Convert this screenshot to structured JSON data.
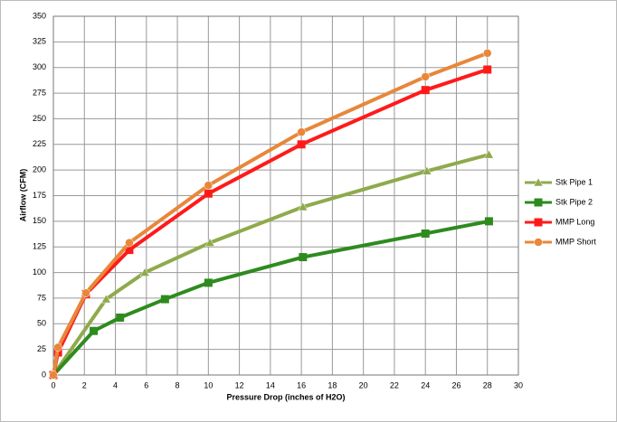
{
  "chart_data": {
    "type": "line",
    "xlabel": "Pressure Drop (inches of H2O)",
    "ylabel": "Airflow (CFM)",
    "xlim": [
      0,
      30
    ],
    "xticks": [
      0,
      2,
      4,
      6,
      8,
      10,
      12,
      14,
      16,
      18,
      20,
      22,
      24,
      26,
      28,
      30
    ],
    "ylim": [
      0,
      350
    ],
    "yticks": [
      0,
      25,
      50,
      75,
      100,
      125,
      150,
      175,
      200,
      225,
      250,
      275,
      300,
      325,
      350
    ],
    "grid": true,
    "legend": "right",
    "series": [
      {
        "name": "Stk Pipe 1",
        "color": "#8faa4c",
        "marker": "triangle",
        "x": [
          0,
          3.4,
          5.9,
          10.1,
          16.1,
          24.1,
          28.1
        ],
        "values": [
          0,
          74,
          100,
          129,
          164,
          199,
          215
        ]
      },
      {
        "name": "Stk Pipe 2",
        "color": "#2e8b1e",
        "marker": "square",
        "x": [
          0,
          2.6,
          4.3,
          7.2,
          10,
          16.1,
          24,
          28.1
        ],
        "values": [
          0,
          43,
          56,
          74,
          90,
          115,
          138,
          150
        ]
      },
      {
        "name": "MMP Long",
        "color": "#ff1a1a",
        "marker": "square",
        "x": [
          0,
          0.3,
          2.1,
          4.9,
          10,
          16,
          24,
          28
        ],
        "values": [
          0,
          22,
          79,
          122,
          177,
          225,
          278,
          298
        ]
      },
      {
        "name": "MMP Short",
        "color": "#e8873a",
        "marker": "circle",
        "x": [
          0,
          0.3,
          2.1,
          4.9,
          10,
          16,
          24,
          28
        ],
        "values": [
          0,
          27,
          80,
          129,
          185,
          237,
          291,
          314
        ]
      }
    ]
  }
}
